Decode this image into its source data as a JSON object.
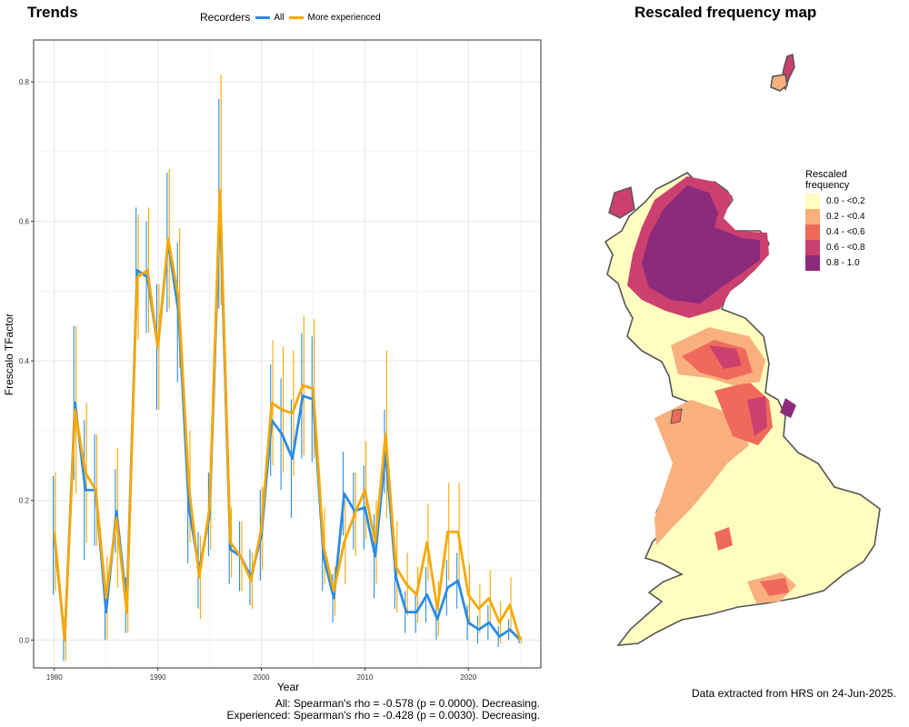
{
  "trends": {
    "title": "Trends",
    "legend_title": "Recorders",
    "stat_all": "All: Spearman's rho = -0.578 (p = 0.0000). Decreasing.",
    "stat_exp": "Experienced: Spearman's rho = -0.428 (p = 0.0030). Decreasing."
  },
  "map": {
    "title": "Rescaled frequency map",
    "legend_title_1": "Rescaled",
    "legend_title_2": "frequency",
    "legend": [
      {
        "label": "0.0 - <0.2",
        "color": "#FFFDBF"
      },
      {
        "label": "0.2 - <0.4",
        "color": "#F9B07C"
      },
      {
        "label": "0.4 - <0.6",
        "color": "#F06A5C"
      },
      {
        "label": "0.6 - <0.8",
        "color": "#CC4070"
      },
      {
        "label": "0.8 - 1.0",
        "color": "#8C2A7C"
      }
    ],
    "note": "Data extracted from HRS on 24-Jun-2025."
  },
  "chart_data": {
    "type": "line",
    "xlabel": "Year",
    "ylabel": "Frescalo TFactor",
    "xlim": [
      1978,
      2027
    ],
    "ylim": [
      -0.04,
      0.86
    ],
    "x_ticks": [
      1980,
      1990,
      2000,
      2010,
      2020
    ],
    "y_ticks": [
      0.0,
      0.2,
      0.4,
      0.6,
      0.8
    ],
    "grid": true,
    "legend_position": "top",
    "x": [
      1980,
      1981,
      1982,
      1983,
      1984,
      1985,
      1986,
      1987,
      1988,
      1989,
      1990,
      1991,
      1992,
      1993,
      1994,
      1995,
      1996,
      1997,
      1998,
      1999,
      2000,
      2001,
      2002,
      2003,
      2004,
      2005,
      2006,
      2007,
      2008,
      2009,
      2010,
      2011,
      2012,
      2013,
      2014,
      2015,
      2016,
      2017,
      2018,
      2019,
      2020,
      2021,
      2022,
      2023,
      2024,
      2025
    ],
    "series": [
      {
        "name": "All",
        "color": "#2B8BE6",
        "values": [
          0.15,
          0.0,
          0.34,
          0.215,
          0.215,
          0.04,
          0.185,
          0.05,
          0.53,
          0.52,
          0.42,
          0.57,
          0.47,
          0.19,
          0.1,
          0.18,
          0.625,
          0.13,
          0.12,
          0.09,
          0.15,
          0.315,
          0.295,
          0.26,
          0.35,
          0.345,
          0.12,
          0.06,
          0.21,
          0.185,
          0.19,
          0.12,
          0.27,
          0.09,
          0.04,
          0.04,
          0.065,
          0.03,
          0.075,
          0.085,
          0.025,
          0.015,
          0.025,
          0.005,
          0.015,
          0.0
        ],
        "err": [
          0.085,
          0.03,
          0.11,
          0.1,
          0.08,
          0.04,
          0.06,
          0.04,
          0.09,
          0.08,
          0.09,
          0.1,
          0.1,
          0.08,
          0.055,
          0.06,
          0.15,
          0.05,
          0.05,
          0.04,
          0.065,
          0.08,
          0.08,
          0.085,
          0.09,
          0.09,
          0.05,
          0.035,
          0.06,
          0.055,
          0.06,
          0.06,
          0.06,
          0.045,
          0.03,
          0.03,
          0.04,
          0.03,
          0.04,
          0.04,
          0.025,
          0.02,
          0.025,
          0.015,
          0.015,
          0.005
        ]
      },
      {
        "name": "More experienced",
        "color": "#F7A800",
        "values": [
          0.155,
          0.0,
          0.33,
          0.24,
          0.215,
          0.06,
          0.175,
          0.04,
          0.52,
          0.53,
          0.42,
          0.575,
          0.49,
          0.22,
          0.09,
          0.19,
          0.645,
          0.14,
          0.12,
          0.085,
          0.16,
          0.34,
          0.33,
          0.325,
          0.365,
          0.36,
          0.135,
          0.07,
          0.14,
          0.18,
          0.215,
          0.14,
          0.295,
          0.105,
          0.08,
          0.065,
          0.14,
          0.045,
          0.155,
          0.155,
          0.065,
          0.045,
          0.06,
          0.025,
          0.05,
          0.0
        ],
        "err": [
          0.085,
          0.03,
          0.12,
          0.1,
          0.08,
          0.06,
          0.1,
          0.03,
          0.09,
          0.09,
          0.09,
          0.1,
          0.1,
          0.08,
          0.06,
          0.06,
          0.165,
          0.05,
          0.05,
          0.04,
          0.06,
          0.09,
          0.09,
          0.09,
          0.1,
          0.1,
          0.055,
          0.035,
          0.06,
          0.06,
          0.07,
          0.06,
          0.12,
          0.065,
          0.045,
          0.04,
          0.055,
          0.04,
          0.07,
          0.07,
          0.045,
          0.035,
          0.04,
          0.03,
          0.04,
          0.005
        ]
      }
    ]
  }
}
